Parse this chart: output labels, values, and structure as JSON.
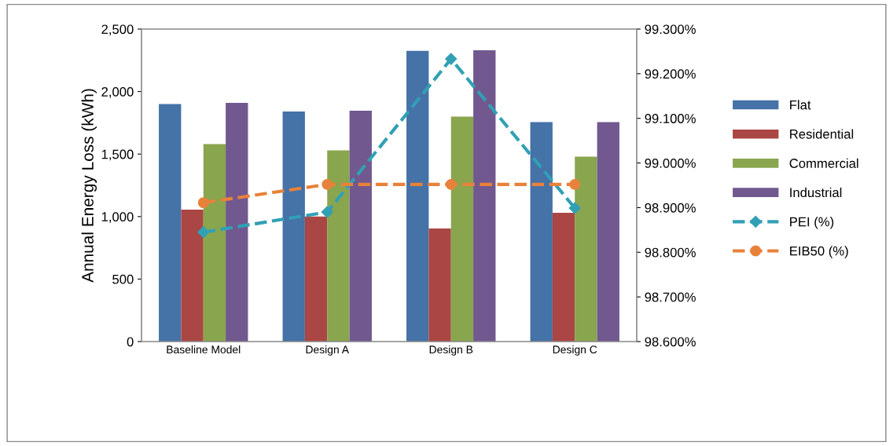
{
  "chart_data": {
    "type": "bar",
    "ylabel": "Annual Energy Loss (kWh)",
    "categories": [
      "Baseline Model",
      "Design A",
      "Design B",
      "Design C"
    ],
    "series": [
      {
        "name": "Flat",
        "color": "#4572a7",
        "values": [
          1900,
          1840,
          2325,
          1755
        ]
      },
      {
        "name": "Residential",
        "color": "#aa4643",
        "values": [
          1055,
          1000,
          905,
          1030
        ]
      },
      {
        "name": "Commercial",
        "color": "#89a54e",
        "values": [
          1580,
          1530,
          1800,
          1480
        ]
      },
      {
        "name": "Industrial",
        "color": "#71588f",
        "values": [
          1910,
          1847,
          2330,
          1755
        ]
      },
      {
        "name": "PEI (%)",
        "type": "line",
        "axis": "y2",
        "color": "#31a0b5",
        "marker": "diamond",
        "line_style": "dashed",
        "values": [
          98.845,
          98.89,
          99.233,
          98.899
        ]
      },
      {
        "name": "EIB50 (%)",
        "type": "line",
        "axis": "y2",
        "color": "#e8823a",
        "marker": "circle",
        "line_style": "dashed",
        "values": [
          98.911,
          98.952,
          98.952,
          98.952
        ]
      }
    ],
    "ylim": [
      0,
      2500
    ],
    "yticks": [
      {
        "value": 0,
        "label": "0"
      },
      {
        "value": 500,
        "label": "500"
      },
      {
        "value": 1000,
        "label": "1,000"
      },
      {
        "value": 1500,
        "label": "1,500"
      },
      {
        "value": 2000,
        "label": "2,000"
      },
      {
        "value": 2500,
        "label": "2,500"
      }
    ],
    "y2lim": [
      98.6,
      99.3
    ],
    "y2ticks": [
      {
        "value": 98.6,
        "label": "98.600%"
      },
      {
        "value": 98.7,
        "label": "98.700%"
      },
      {
        "value": 98.8,
        "label": "98.800%"
      },
      {
        "value": 98.9,
        "label": "98.900%"
      },
      {
        "value": 99.0,
        "label": "99.000%"
      },
      {
        "value": 99.1,
        "label": "99.100%"
      },
      {
        "value": 99.2,
        "label": "99.200%"
      },
      {
        "value": 99.3,
        "label": "99.300%"
      }
    ],
    "grid": false,
    "legend": "right"
  }
}
